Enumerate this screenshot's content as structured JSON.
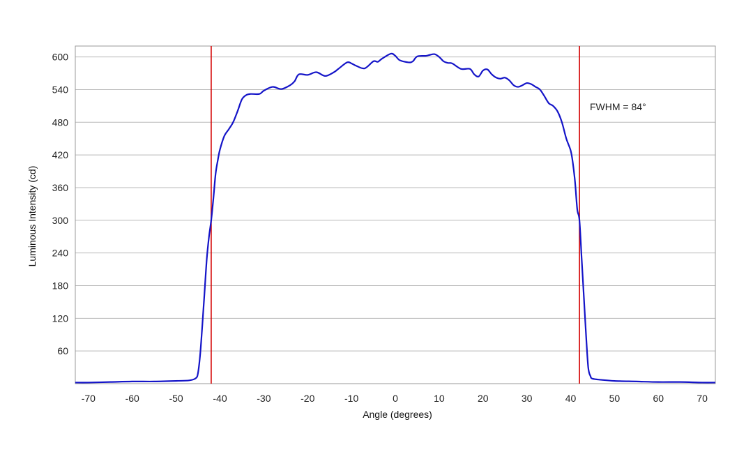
{
  "chart_data": {
    "type": "line",
    "title": "",
    "xlabel": "Angle (degrees)",
    "ylabel": "Luminous Intensity (cd)",
    "xlim": [
      -73,
      73
    ],
    "ylim": [
      0,
      620
    ],
    "x_ticks": [
      -70,
      -60,
      -50,
      -40,
      -30,
      -20,
      -10,
      0,
      10,
      20,
      30,
      40,
      50,
      60,
      70
    ],
    "y_ticks": [
      60,
      120,
      180,
      240,
      300,
      360,
      420,
      480,
      540,
      600
    ],
    "grid": "horizontal",
    "series": [
      {
        "color": "#1414c8",
        "points": [
          [
            -73,
            2
          ],
          [
            -70,
            2
          ],
          [
            -65,
            3
          ],
          [
            -60,
            4
          ],
          [
            -55,
            4
          ],
          [
            -50,
            5
          ],
          [
            -47,
            6
          ],
          [
            -45.5,
            10
          ],
          [
            -45,
            20
          ],
          [
            -44.5,
            55
          ],
          [
            -44,
            110
          ],
          [
            -43.5,
            170
          ],
          [
            -43,
            230
          ],
          [
            -42.5,
            270
          ],
          [
            -42,
            300
          ],
          [
            -41.5,
            340
          ],
          [
            -41,
            385
          ],
          [
            -40.5,
            410
          ],
          [
            -40,
            430
          ],
          [
            -39,
            455
          ],
          [
            -38,
            467
          ],
          [
            -37,
            480
          ],
          [
            -36,
            500
          ],
          [
            -35,
            522
          ],
          [
            -34,
            530
          ],
          [
            -33,
            532
          ],
          [
            -31,
            532
          ],
          [
            -30,
            538
          ],
          [
            -28,
            545
          ],
          [
            -26,
            541
          ],
          [
            -24,
            548
          ],
          [
            -23,
            555
          ],
          [
            -22,
            568
          ],
          [
            -20,
            567
          ],
          [
            -18,
            572
          ],
          [
            -16,
            565
          ],
          [
            -14,
            572
          ],
          [
            -13,
            578
          ],
          [
            -11,
            590
          ],
          [
            -10,
            588
          ],
          [
            -9,
            584
          ],
          [
            -7,
            579
          ],
          [
            -5,
            592
          ],
          [
            -4,
            591
          ],
          [
            -3,
            597
          ],
          [
            -1,
            606
          ],
          [
            0,
            602
          ],
          [
            1,
            594
          ],
          [
            3,
            590
          ],
          [
            4,
            592
          ],
          [
            5,
            601
          ],
          [
            7,
            602
          ],
          [
            8,
            604
          ],
          [
            9,
            605
          ],
          [
            10,
            600
          ],
          [
            11,
            592
          ],
          [
            12,
            589
          ],
          [
            13,
            588
          ],
          [
            15,
            578
          ],
          [
            17,
            578
          ],
          [
            18,
            568
          ],
          [
            19,
            564
          ],
          [
            20,
            575
          ],
          [
            21,
            577
          ],
          [
            22,
            568
          ],
          [
            23,
            562
          ],
          [
            24,
            560
          ],
          [
            25,
            562
          ],
          [
            26,
            557
          ],
          [
            27,
            548
          ],
          [
            28,
            545
          ],
          [
            29,
            548
          ],
          [
            30,
            552
          ],
          [
            31,
            550
          ],
          [
            32,
            545
          ],
          [
            33,
            540
          ],
          [
            34,
            528
          ],
          [
            35,
            515
          ],
          [
            36,
            510
          ],
          [
            37,
            500
          ],
          [
            38,
            480
          ],
          [
            39,
            450
          ],
          [
            40,
            428
          ],
          [
            40.5,
            405
          ],
          [
            41,
            370
          ],
          [
            41.5,
            320
          ],
          [
            42,
            300
          ],
          [
            42.5,
            230
          ],
          [
            43,
            160
          ],
          [
            43.5,
            90
          ],
          [
            44,
            30
          ],
          [
            44.5,
            14
          ],
          [
            45,
            9
          ],
          [
            47,
            7
          ],
          [
            50,
            5
          ],
          [
            55,
            4
          ],
          [
            60,
            3
          ],
          [
            65,
            3
          ],
          [
            70,
            2
          ],
          [
            73,
            2
          ]
        ]
      }
    ],
    "reference_lines": [
      {
        "axis": "x",
        "value": -42,
        "color": "#d40000"
      },
      {
        "axis": "x",
        "value": 42,
        "color": "#d40000"
      }
    ],
    "annotations": [
      {
        "text": "FWHM = 84°"
      }
    ]
  }
}
